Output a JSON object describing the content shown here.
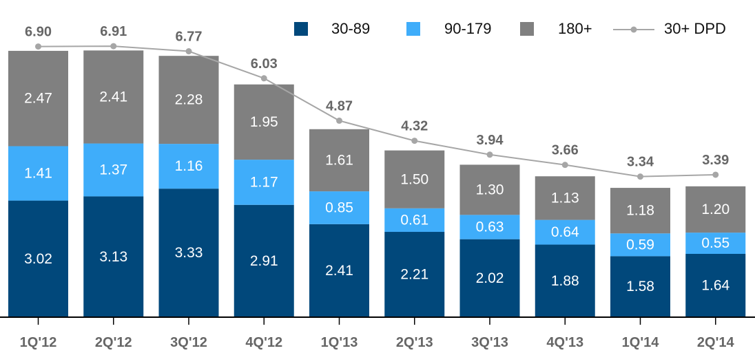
{
  "chart_data": {
    "type": "bar",
    "stacked": true,
    "categories": [
      "1Q'12",
      "2Q'12",
      "3Q'12",
      "4Q'12",
      "1Q'13",
      "2Q'13",
      "3Q'13",
      "4Q'13",
      "1Q'14",
      "2Q'14"
    ],
    "series": [
      {
        "name": "30-89",
        "color": "#01487b",
        "values": [
          3.02,
          3.13,
          3.33,
          2.91,
          2.41,
          2.21,
          2.02,
          1.88,
          1.58,
          1.64
        ]
      },
      {
        "name": "90-179",
        "color": "#3fadfa",
        "values": [
          1.41,
          1.37,
          1.16,
          1.17,
          0.85,
          0.61,
          0.63,
          0.64,
          0.59,
          0.55
        ]
      },
      {
        "name": "180+",
        "color": "#808080",
        "values": [
          2.47,
          2.41,
          2.28,
          1.95,
          1.61,
          1.5,
          1.3,
          1.13,
          1.18,
          1.2
        ]
      },
      {
        "name": "30+ DPD",
        "type": "line",
        "color": "#a6a6a6",
        "values": [
          6.9,
          6.91,
          6.77,
          6.03,
          4.87,
          4.32,
          3.94,
          3.66,
          3.34,
          3.39
        ]
      }
    ],
    "value_labels": [
      "6.90",
      "6.91",
      "6.77",
      "6.03",
      "4.87",
      "4.32",
      "3.94",
      "3.66",
      "3.34",
      "3.39"
    ],
    "segment_labels": [
      [
        "3.02",
        "3.13",
        "3.33",
        "2.91",
        "2.41",
        "2.21",
        "2.02",
        "1.88",
        "1.58",
        "1.64"
      ],
      [
        "1.41",
        "1.37",
        "1.16",
        "1.17",
        "0.85",
        "0.61",
        "0.63",
        "0.64",
        "0.59",
        "0.55"
      ],
      [
        "2.47",
        "2.41",
        "2.28",
        "1.95",
        "1.61",
        "1.50",
        "1.30",
        "1.13",
        "1.18",
        "1.20"
      ]
    ],
    "title": "",
    "xlabel": "",
    "ylabel": "",
    "grid": false,
    "legend_position": "top-right"
  }
}
